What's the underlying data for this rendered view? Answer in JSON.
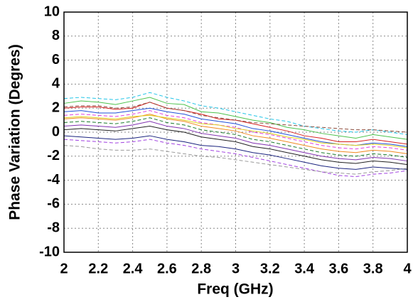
{
  "chart_data": {
    "type": "line",
    "x_label": "Freq (GHz)",
    "y_label": "Phase Variation (Degres)",
    "x": [
      2.0,
      2.1,
      2.2,
      2.3,
      2.4,
      2.5,
      2.6,
      2.7,
      2.8,
      2.9,
      3.0,
      3.1,
      3.2,
      3.3,
      3.4,
      3.5,
      3.6,
      3.7,
      3.8,
      3.9,
      4.0
    ],
    "xlim": [
      2,
      4
    ],
    "xticks": [
      2,
      2.2,
      2.4,
      2.6,
      2.8,
      3,
      3.2,
      3.4,
      3.6,
      3.8,
      4
    ],
    "ylim": [
      -10,
      10
    ],
    "yticks": [
      -10,
      -8,
      -6,
      -4,
      -2,
      0,
      2,
      4,
      6,
      8,
      10
    ],
    "grid": true,
    "series": [
      {
        "color": "#22c5e8",
        "dash": true,
        "values": [
          2.8,
          2.9,
          2.8,
          2.7,
          2.9,
          3.3,
          2.9,
          2.6,
          2.2,
          2.0,
          1.7,
          1.4,
          1.1,
          0.9,
          0.5,
          0.3,
          0.1,
          0.0,
          0.2,
          0.0,
          -0.2
        ]
      },
      {
        "color": "#4cc24c",
        "dash": false,
        "values": [
          2.4,
          2.6,
          2.5,
          2.3,
          2.6,
          2.9,
          2.4,
          2.3,
          1.7,
          1.6,
          1.3,
          1.0,
          0.8,
          0.4,
          0.2,
          -0.1,
          -0.3,
          -0.5,
          -0.2,
          -0.4,
          -0.6
        ]
      },
      {
        "color": "#d62020",
        "dash": false,
        "values": [
          2.0,
          2.1,
          2.1,
          1.9,
          2.0,
          2.5,
          2.0,
          1.8,
          1.5,
          1.1,
          1.0,
          0.7,
          0.4,
          0.1,
          -0.3,
          -0.5,
          -0.8,
          -0.8,
          -0.6,
          -0.8,
          -1.0
        ]
      },
      {
        "color": "#2050d8",
        "dash": false,
        "values": [
          1.7,
          1.8,
          1.6,
          1.6,
          1.8,
          2.0,
          1.7,
          1.5,
          1.1,
          0.9,
          0.7,
          0.3,
          0.1,
          -0.2,
          -0.5,
          -0.8,
          -1.0,
          -1.1,
          -0.9,
          -1.0,
          -1.2
        ]
      },
      {
        "color": "#e040e0",
        "dash": true,
        "values": [
          1.4,
          1.5,
          1.4,
          1.3,
          1.5,
          1.8,
          1.4,
          1.2,
          0.8,
          0.6,
          0.4,
          0.0,
          -0.2,
          -0.5,
          -0.8,
          -1.1,
          -1.3,
          -1.4,
          -1.2,
          -1.3,
          -1.5
        ]
      },
      {
        "color": "#f08a20",
        "dash": false,
        "values": [
          1.1,
          1.2,
          1.1,
          1.0,
          1.2,
          1.5,
          1.1,
          0.9,
          0.5,
          0.3,
          0.1,
          -0.3,
          -0.5,
          -0.8,
          -1.1,
          -1.4,
          -1.6,
          -1.7,
          -1.5,
          -1.6,
          -1.8
        ]
      },
      {
        "color": "#1a7a2a",
        "dash": true,
        "values": [
          0.8,
          0.9,
          0.8,
          0.7,
          0.9,
          1.2,
          0.8,
          0.6,
          0.2,
          0.0,
          -0.2,
          -0.6,
          -0.8,
          -1.1,
          -1.4,
          -1.7,
          -1.9,
          -2.0,
          -1.8,
          -1.9,
          -2.1
        ]
      },
      {
        "color": "#8030b0",
        "dash": false,
        "values": [
          0.5,
          0.6,
          0.5,
          0.4,
          0.6,
          0.9,
          0.5,
          0.3,
          -0.1,
          -0.3,
          -0.5,
          -0.9,
          -1.1,
          -1.4,
          -1.7,
          -2.0,
          -2.2,
          -2.3,
          -2.1,
          -2.2,
          -2.4
        ]
      },
      {
        "color": "#202020",
        "dash": false,
        "values": [
          0.2,
          0.3,
          0.2,
          0.1,
          0.3,
          0.5,
          0.2,
          0.0,
          -0.4,
          -0.6,
          -0.8,
          -1.2,
          -1.4,
          -1.7,
          -2.0,
          -2.3,
          -2.5,
          -2.6,
          -2.4,
          -2.5,
          -2.7
        ]
      },
      {
        "color": "#1a237e",
        "dash": false,
        "values": [
          -0.3,
          -0.4,
          -0.5,
          -0.6,
          -0.5,
          -0.3,
          -0.6,
          -0.8,
          -1.1,
          -1.2,
          -1.4,
          -1.7,
          -1.9,
          -2.2,
          -2.5,
          -2.8,
          -3.0,
          -3.1,
          -2.9,
          -3.0,
          -3.1
        ]
      },
      {
        "color": "#a040e0",
        "dash": true,
        "values": [
          -0.6,
          -0.7,
          -0.8,
          -0.9,
          -0.8,
          -0.6,
          -0.9,
          -1.1,
          -1.4,
          -1.6,
          -1.8,
          -2.1,
          -2.4,
          -2.7,
          -3.0,
          -3.3,
          -3.6,
          -3.7,
          -3.5,
          -3.4,
          -3.2
        ]
      },
      {
        "color": "#999999",
        "dash": true,
        "values": [
          -1.1,
          -1.2,
          -1.4,
          -1.5,
          -1.5,
          -1.4,
          -1.6,
          -1.8,
          -2.0,
          -2.1,
          -2.3,
          -2.5,
          -2.7,
          -2.9,
          -3.1,
          -3.3,
          -3.4,
          -3.5,
          -3.3,
          -3.2,
          -3.0
        ]
      },
      {
        "color": "#8b4a3a",
        "dash": true,
        "values": [
          2.1,
          2.2,
          2.2,
          2.0,
          2.1,
          2.5,
          2.0,
          1.8,
          1.4,
          1.2,
          1.0,
          0.8,
          0.7,
          0.6,
          0.5,
          0.4,
          0.3,
          0.2,
          0.2,
          0.1,
          0.0
        ]
      },
      {
        "color": "#e0d020",
        "dash": false,
        "values": [
          1.2,
          1.3,
          1.2,
          1.1,
          1.3,
          1.4,
          1.2,
          1.0,
          0.7,
          0.6,
          0.3,
          0.1,
          -0.1,
          -0.4,
          -0.6,
          -0.9,
          -1.0,
          -1.1,
          -1.0,
          -1.1,
          -1.3
        ]
      }
    ]
  }
}
